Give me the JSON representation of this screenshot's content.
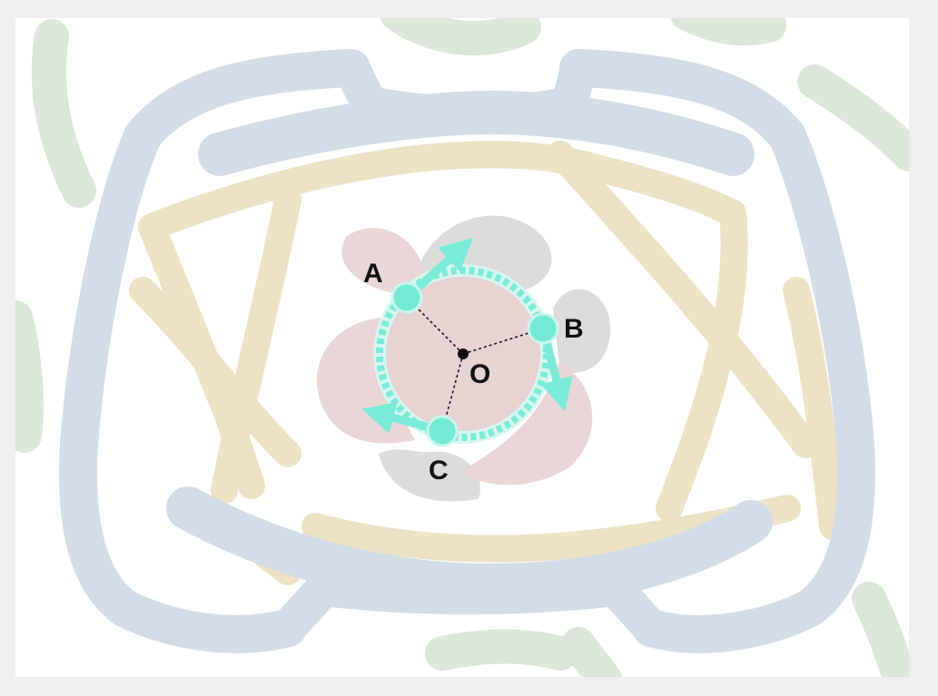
{
  "diagram": {
    "center_label": "O",
    "points": [
      {
        "id": "A",
        "label": "A"
      },
      {
        "id": "B",
        "label": "B"
      },
      {
        "id": "C",
        "label": "C"
      }
    ],
    "colors": {
      "frame_background": "#efefef",
      "canvas": "#ffffff",
      "watermark_blue": "#d3dde8",
      "watermark_gold": "#ede2c3",
      "watermark_green": "#dbe7d8",
      "petal_pink": "#ead6d6",
      "petal_gray": "#dcdcdc",
      "inner_disc": "#e8d3d3",
      "orbit_cyan": "#79ecd8",
      "point_cyan": "#74ead6",
      "arrow_cyan": "#78ecd8",
      "radius_line": "#111111"
    }
  }
}
